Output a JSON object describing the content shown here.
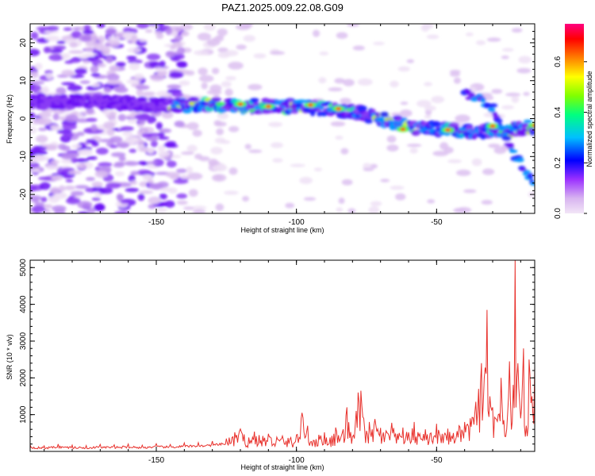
{
  "title": "PAZ1.2025.009.22.08.G09",
  "chart_data": [
    {
      "type": "heatmap",
      "xlabel": "Height of straight line (km)",
      "ylabel": "Frequency (Hz)",
      "xlim": [
        -195,
        -15
      ],
      "ylim": [
        -25,
        25
      ],
      "xticks": [
        -150,
        -100,
        -50
      ],
      "yticks": [
        -20,
        -10,
        0,
        10,
        20
      ],
      "colorbar": {
        "label": "Normalized spectral amplitude",
        "range": [
          0,
          0.75
        ],
        "ticks": [
          "0.0",
          "0.2",
          "0.4",
          "0.6"
        ],
        "colors": [
          "#f2e6f7",
          "#9b30ff",
          "#0000ff",
          "#00c0ff",
          "#00ff80",
          "#80ff00",
          "#ffff00",
          "#ff8000",
          "#ff0000",
          "#ff0080"
        ]
      },
      "ridge": [
        {
          "x": -195,
          "y": 4.5
        },
        {
          "x": -175,
          "y": 4.5
        },
        {
          "x": -160,
          "y": 4.0
        },
        {
          "x": -140,
          "y": 3.5
        },
        {
          "x": -125,
          "y": 3.5
        },
        {
          "x": -110,
          "y": 3.2
        },
        {
          "x": -95,
          "y": 3.0
        },
        {
          "x": -80,
          "y": 2.0
        },
        {
          "x": -70,
          "y": 0.0
        },
        {
          "x": -60,
          "y": -2.0
        },
        {
          "x": -45,
          "y": -3.0
        },
        {
          "x": -35,
          "y": -3.5
        },
        {
          "x": -25,
          "y": -3.0
        },
        {
          "x": -15,
          "y": -2.0
        }
      ],
      "secondary_ridge": [
        {
          "x": -40,
          "y": 7.0
        },
        {
          "x": -30,
          "y": 3.0
        },
        {
          "x": -25,
          "y": -6.0
        },
        {
          "x": -20,
          "y": -12.0
        },
        {
          "x": -15,
          "y": -17.0
        }
      ]
    },
    {
      "type": "line",
      "xlabel": "Height of straight line (km)",
      "ylabel": "SNR (10 * v/v)",
      "xlim": [
        -195,
        -15
      ],
      "ylim": [
        0,
        5200
      ],
      "xticks": [
        -150,
        -100,
        -50
      ],
      "yticks": [
        1000,
        2000,
        3000,
        4000,
        5000
      ],
      "color": "#e8312c",
      "series": [
        {
          "x": [
            -195,
            -190,
            -185,
            -180,
            -175,
            -170,
            -165,
            -160,
            -155,
            -150,
            -145,
            -140,
            -135,
            -130,
            -125,
            -122,
            -120,
            -117,
            -115,
            -112,
            -110,
            -107,
            -105,
            -102,
            -100,
            -98,
            -96,
            -94,
            -92,
            -90,
            -88,
            -86,
            -84,
            -82,
            -80,
            -78,
            -77,
            -76,
            -75,
            -74,
            -73,
            -72,
            -70,
            -68,
            -66,
            -64,
            -62,
            -60,
            -58,
            -56,
            -54,
            -52,
            -50,
            -48,
            -46,
            -44,
            -42,
            -40,
            -38,
            -36,
            -35,
            -34,
            -33,
            -32,
            -31,
            -30,
            -29,
            -28,
            -27,
            -26,
            -25,
            -24,
            -23,
            -22,
            -21,
            -20,
            -19,
            -18,
            -17,
            -16,
            -15
          ],
          "values": [
            180,
            150,
            200,
            170,
            160,
            190,
            180,
            200,
            170,
            210,
            190,
            230,
            240,
            280,
            350,
            520,
            610,
            380,
            540,
            420,
            480,
            390,
            420,
            380,
            450,
            1050,
            700,
            300,
            450,
            520,
            380,
            650,
            420,
            1200,
            400,
            1600,
            1650,
            900,
            560,
            800,
            600,
            880,
            640,
            560,
            780,
            480,
            650,
            520,
            800,
            480,
            600,
            500,
            750,
            480,
            620,
            500,
            700,
            800,
            900,
            1350,
            1700,
            2400,
            2000,
            3850,
            1500,
            1200,
            900,
            1000,
            2000,
            850,
            600,
            2450,
            800,
            5200,
            2400,
            900,
            2800,
            700,
            2500,
            1500,
            2300
          ]
        }
      ]
    }
  ]
}
